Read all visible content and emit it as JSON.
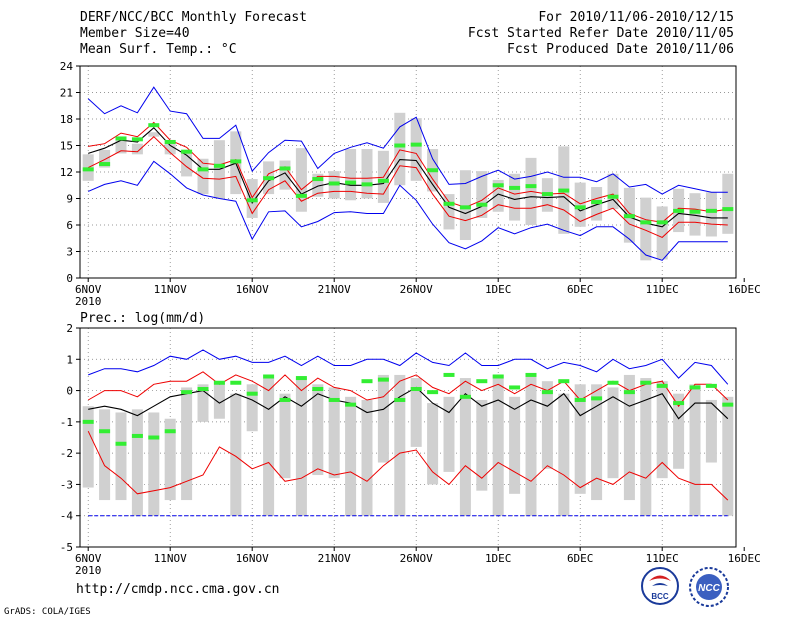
{
  "header": {
    "line1_left": "DERF/NCC/BCC Monthly Forecast",
    "line2_left": "Member Size=40",
    "line3_left": "Mean Surf. Temp.: °C",
    "line1_right": "For 2010/11/06-2010/12/15",
    "line2_right": "Fcst Started Refer Date 2010/11/05",
    "line3_right": "Fcst Produced Date 2010/11/06"
  },
  "footer": {
    "url": "http://cmdp.ncc.cma.gov.cn",
    "grads": "GrADS: COLA/IGES"
  },
  "logos": {
    "bcc": "BCC",
    "ncc": "NCC"
  },
  "colors": {
    "max_min": "#0000ee",
    "mean": "#000000",
    "p25_75": "#ee0000",
    "observed": "#33ee33",
    "box": "#d0d0d0"
  },
  "chart_data": [
    {
      "type": "line",
      "name": "temperature",
      "title": "Mean Surf. Temp.: °C",
      "ylim": [
        0,
        24
      ],
      "x_axis_range": [
        -0.5,
        39.5
      ],
      "yticks": [
        0,
        3,
        6,
        9,
        12,
        15,
        18,
        21,
        24
      ],
      "xticks": [
        {
          "day": 0,
          "label": "6NOV",
          "sub": "2010"
        },
        {
          "day": 5,
          "label": "11NOV"
        },
        {
          "day": 10,
          "label": "16NOV"
        },
        {
          "day": 15,
          "label": "21NOV"
        },
        {
          "day": 20,
          "label": "26NOV"
        },
        {
          "day": 25,
          "label": "1DEC"
        },
        {
          "day": 30,
          "label": "6DEC"
        },
        {
          "day": 35,
          "label": "11DEC"
        },
        {
          "day": 40,
          "label": "16DEC"
        }
      ],
      "grid": true,
      "series": [
        {
          "name": "max",
          "values": [
            20.3,
            18.6,
            19.5,
            18.7,
            21.6,
            18.9,
            18.6,
            15.8,
            15.8,
            17.3,
            12.1,
            14.2,
            15.6,
            15.5,
            12.4,
            14.1,
            14.8,
            15.3,
            14.7,
            17.1,
            18.2,
            13.5,
            10.6,
            10.7,
            11.5,
            12.2,
            11.2,
            11.5,
            12.0,
            11.4,
            11.4,
            10.9,
            11.8,
            10.3,
            10.6,
            9.5,
            10.5,
            10.1,
            9.7,
            9.7
          ]
        },
        {
          "name": "p75",
          "values": [
            14.9,
            15.2,
            16.4,
            16.0,
            17.6,
            15.6,
            14.8,
            13.0,
            12.8,
            13.4,
            9.1,
            11.8,
            12.6,
            10.0,
            11.5,
            11.5,
            11.3,
            11.3,
            11.4,
            14.5,
            14.1,
            11.2,
            8.6,
            8.0,
            8.8,
            10.2,
            9.5,
            9.8,
            9.5,
            9.6,
            8.4,
            9.0,
            9.5,
            7.3,
            6.6,
            6.3,
            7.9,
            7.8,
            7.5,
            7.8
          ]
        },
        {
          "name": "mean",
          "values": [
            14.1,
            14.7,
            15.6,
            15.4,
            17.0,
            15.0,
            13.9,
            12.3,
            12.3,
            13.0,
            8.5,
            11.0,
            11.9,
            9.5,
            10.4,
            10.8,
            10.5,
            10.5,
            10.7,
            13.4,
            13.3,
            10.6,
            8.0,
            7.3,
            8.1,
            9.5,
            8.9,
            9.2,
            9.1,
            9.2,
            7.6,
            8.3,
            8.9,
            6.9,
            6.2,
            5.8,
            7.3,
            7.1,
            6.8,
            6.8
          ]
        },
        {
          "name": "p25",
          "values": [
            12.5,
            13.4,
            14.4,
            14.3,
            16.0,
            14.2,
            12.6,
            11.3,
            11.2,
            11.5,
            7.3,
            10.0,
            11.0,
            8.7,
            9.6,
            9.8,
            9.8,
            9.6,
            9.5,
            12.7,
            12.5,
            9.5,
            7.0,
            6.5,
            7.1,
            8.3,
            7.9,
            7.9,
            8.3,
            7.7,
            6.4,
            7.2,
            7.9,
            6.1,
            5.4,
            4.6,
            6.3,
            6.3,
            6.1,
            6.0
          ]
        },
        {
          "name": "min",
          "values": [
            9.8,
            10.6,
            11.0,
            10.5,
            13.2,
            11.8,
            10.2,
            9.4,
            9.0,
            8.7,
            4.4,
            7.5,
            7.6,
            5.8,
            6.4,
            7.4,
            7.5,
            7.3,
            7.3,
            10.5,
            8.8,
            6.1,
            4.0,
            3.3,
            4.2,
            5.7,
            5.0,
            5.7,
            6.1,
            5.4,
            4.8,
            5.8,
            5.8,
            4.4,
            2.6,
            2.0,
            4.1,
            4.1,
            4.1,
            4.1
          ]
        },
        {
          "name": "box_top",
          "values": [
            14.0,
            14.5,
            15.7,
            15.2,
            16.5,
            15.5,
            14.5,
            13.5,
            15.6,
            16.6,
            11.2,
            13.2,
            13.3,
            14.7,
            11.8,
            12.1,
            14.6,
            14.6,
            14.4,
            18.7,
            18.1,
            14.6,
            9.5,
            12.2,
            12.1,
            11.1,
            11.8,
            13.6,
            11.3,
            14.9,
            10.8,
            10.3,
            11.8,
            10.2,
            9.1,
            8.1,
            10.1,
            9.6,
            9.7,
            11.8
          ]
        },
        {
          "name": "box_bottom",
          "values": [
            11.0,
            12.5,
            14.1,
            14.0,
            16.0,
            14.0,
            11.5,
            9.5,
            9.0,
            9.5,
            6.8,
            9.5,
            10.0,
            7.5,
            9.2,
            9.0,
            8.8,
            9.0,
            8.5,
            10.5,
            11.0,
            9.8,
            5.5,
            4.3,
            6.8,
            7.5,
            6.5,
            6.0,
            7.5,
            5.0,
            5.8,
            6.5,
            7.8,
            4.0,
            2.0,
            2.1,
            5.2,
            4.8,
            4.7,
            5.0
          ]
        },
        {
          "name": "observed",
          "values": [
            12.3,
            12.9,
            15.8,
            15.7,
            17.3,
            15.4,
            14.3,
            12.3,
            12.7,
            13.2,
            8.8,
            11.3,
            12.4,
            9.3,
            11.2,
            10.7,
            10.8,
            10.6,
            11.0,
            15.0,
            15.1,
            12.2,
            8.4,
            8.0,
            8.3,
            10.5,
            10.2,
            10.4,
            9.5,
            9.9,
            8.0,
            8.6,
            9.2,
            7.0,
            6.3,
            6.3,
            7.6,
            7.5,
            7.6,
            7.8
          ]
        }
      ]
    },
    {
      "type": "line",
      "name": "precipitation",
      "title": "Prec.: log(mm/d)",
      "ylim": [
        -5,
        2
      ],
      "x_axis_range": [
        -0.5,
        39.5
      ],
      "yticks": [
        -5,
        -4,
        -3,
        -2,
        -1,
        0,
        1,
        2
      ],
      "xticks": [
        {
          "day": 0,
          "label": "6NOV",
          "sub": "2010"
        },
        {
          "day": 5,
          "label": "11NOV"
        },
        {
          "day": 10,
          "label": "16NOV"
        },
        {
          "day": 15,
          "label": "21NOV"
        },
        {
          "day": 20,
          "label": "26NOV"
        },
        {
          "day": 25,
          "label": "1DEC"
        },
        {
          "day": 30,
          "label": "6DEC"
        },
        {
          "day": 35,
          "label": "11DEC"
        },
        {
          "day": 40,
          "label": "16DEC"
        }
      ],
      "grid": true,
      "series": [
        {
          "name": "max",
          "values": [
            0.5,
            0.7,
            0.7,
            0.6,
            0.8,
            1.1,
            1.0,
            1.3,
            1.0,
            1.1,
            0.9,
            0.9,
            1.1,
            0.8,
            1.1,
            0.8,
            0.8,
            1.0,
            1.0,
            0.8,
            1.2,
            0.9,
            0.8,
            1.2,
            0.8,
            0.8,
            1.0,
            1.0,
            0.7,
            0.9,
            0.8,
            0.6,
            1.0,
            0.7,
            0.8,
            1.0,
            0.4,
            0.9,
            0.8,
            0.2
          ]
        },
        {
          "name": "p75",
          "values": [
            -0.3,
            0.0,
            0.0,
            -0.2,
            0.2,
            0.3,
            0.3,
            0.6,
            0.2,
            0.5,
            0.3,
            0.0,
            0.5,
            0.0,
            0.4,
            0.1,
            0.0,
            -0.3,
            -0.2,
            0.3,
            0.5,
            0.1,
            -0.1,
            0.3,
            0.0,
            0.2,
            -0.1,
            0.2,
            0.0,
            0.3,
            -0.3,
            0.0,
            0.3,
            0.0,
            0.2,
            0.3,
            -0.5,
            0.2,
            0.2,
            -0.3
          ]
        },
        {
          "name": "mean",
          "values": [
            -0.6,
            -0.5,
            -0.6,
            -0.8,
            -0.5,
            -0.2,
            -0.1,
            0.0,
            -0.4,
            -0.1,
            -0.3,
            -0.6,
            -0.2,
            -0.5,
            -0.1,
            -0.3,
            -0.4,
            -0.7,
            -0.6,
            -0.2,
            0.1,
            -0.4,
            -0.7,
            -0.1,
            -0.5,
            -0.3,
            -0.6,
            -0.3,
            -0.5,
            -0.1,
            -0.8,
            -0.5,
            -0.2,
            -0.5,
            -0.3,
            -0.1,
            -0.9,
            -0.4,
            -0.4,
            -0.9
          ]
        },
        {
          "name": "p25",
          "values": [
            -1.3,
            -2.4,
            -2.8,
            -3.3,
            -3.2,
            -3.1,
            -2.9,
            -2.7,
            -1.8,
            -2.1,
            -2.5,
            -2.3,
            -2.9,
            -2.8,
            -2.5,
            -2.7,
            -2.6,
            -2.9,
            -2.4,
            -2.0,
            -1.9,
            -2.6,
            -3.0,
            -2.4,
            -2.8,
            -2.3,
            -2.6,
            -2.9,
            -2.4,
            -2.7,
            -3.1,
            -2.8,
            -3.0,
            -2.6,
            -2.8,
            -2.3,
            -2.8,
            -3.0,
            -3.0,
            -3.5
          ]
        },
        {
          "name": "min",
          "values": [
            -4,
            -4,
            -4,
            -4,
            -4,
            -4,
            -4,
            -4,
            -4,
            -4,
            -4,
            -4,
            -4,
            -4,
            -4,
            -4,
            -4,
            -4,
            -4,
            -4,
            -4,
            -4,
            -4,
            -4,
            -4,
            -4,
            -4,
            -4,
            -4,
            -4,
            -4,
            -4,
            -4,
            -4,
            -4,
            -4,
            -4,
            -4,
            -4,
            -4
          ]
        },
        {
          "name": "box_top",
          "values": [
            -0.5,
            -0.6,
            -0.7,
            -0.6,
            -0.7,
            -0.9,
            0.1,
            0.2,
            0.3,
            -0.1,
            0.2,
            0.4,
            -0.1,
            0.4,
            0.2,
            0.1,
            -0.2,
            -0.3,
            0.5,
            0.5,
            0.4,
            -0.4,
            -0.2,
            0.4,
            -0.3,
            0.5,
            -0.2,
            0.5,
            0.3,
            -0.1,
            0.2,
            0.2,
            0.1,
            0.5,
            0.4,
            0.3,
            -0.1,
            0.2,
            -0.3,
            -0.2
          ]
        },
        {
          "name": "box_bottom",
          "values": [
            -3.1,
            -3.5,
            -3.5,
            -4.0,
            -4.0,
            -3.5,
            -3.5,
            -1.0,
            -0.9,
            -4.0,
            -1.3,
            -4.0,
            -2.8,
            -4.0,
            -2.7,
            -2.8,
            -4.0,
            -4.0,
            -2.3,
            -4.0,
            -1.8,
            -3.0,
            -2.6,
            -4.0,
            -3.2,
            -4.0,
            -3.3,
            -4.0,
            -2.5,
            -4.0,
            -3.3,
            -3.5,
            -2.8,
            -3.5,
            -4.0,
            -2.8,
            -2.5,
            -4.0,
            -2.3,
            -4.0
          ]
        },
        {
          "name": "observed",
          "values": [
            -1.0,
            -1.3,
            -1.7,
            -1.45,
            -1.5,
            -1.3,
            -0.05,
            0.05,
            0.25,
            0.25,
            -0.1,
            0.45,
            -0.3,
            0.4,
            0.05,
            -0.3,
            -0.45,
            0.3,
            0.35,
            -0.3,
            0.05,
            -0.05,
            0.5,
            -0.2,
            0.3,
            0.45,
            0.1,
            0.5,
            -0.05,
            0.3,
            -0.3,
            -0.25,
            0.25,
            -0.05,
            0.25,
            0.15,
            -0.4,
            0.1,
            0.15,
            -0.45
          ]
        }
      ]
    }
  ]
}
